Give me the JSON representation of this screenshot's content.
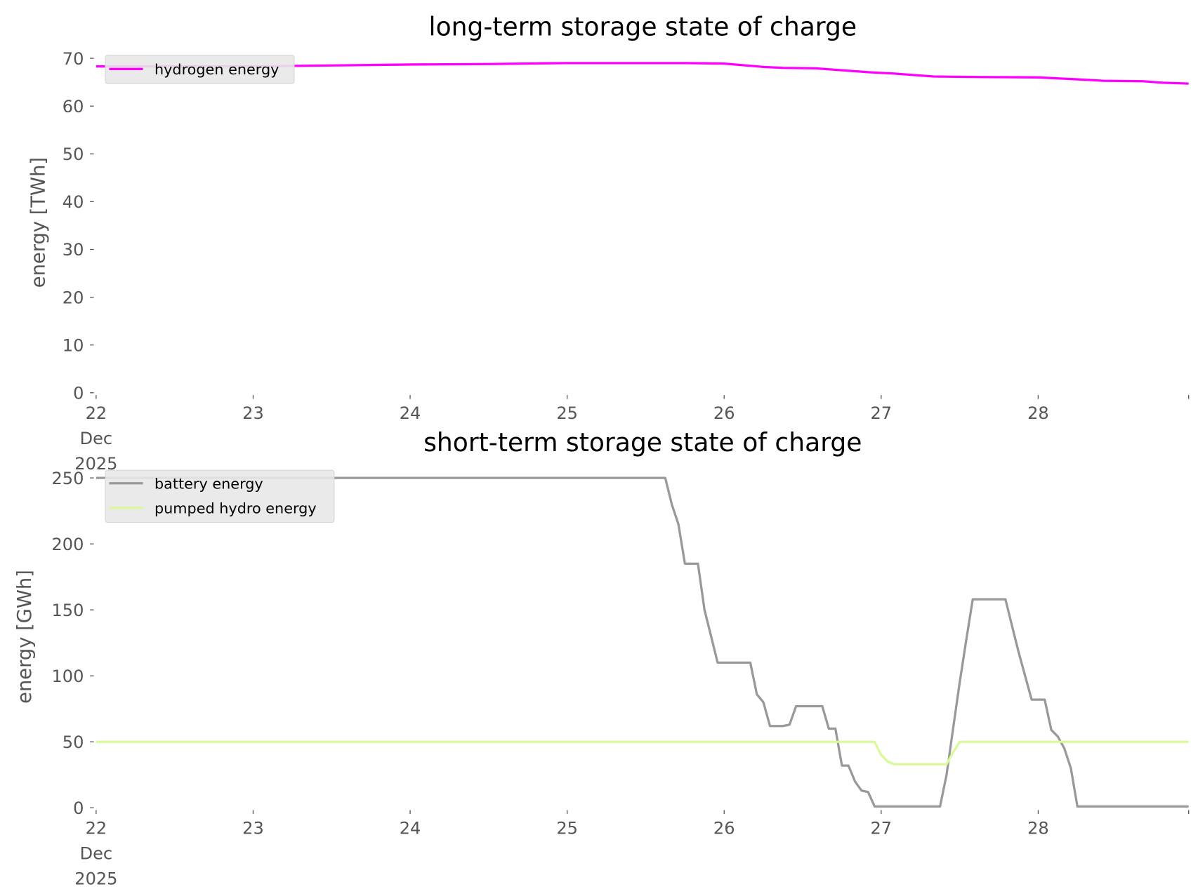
{
  "chart_data": [
    {
      "type": "line",
      "title": "long-term storage state of charge",
      "xlabel": "",
      "ylabel": "energy [TWh]",
      "x_unit": "hours since 22 Dec 2025 00:00",
      "xlim": [
        0,
        167
      ],
      "ylim": [
        0,
        70
      ],
      "yticks": [
        0,
        10,
        20,
        30,
        40,
        50,
        60,
        70
      ],
      "xticks": [
        {
          "hour": 0,
          "label": "22",
          "sub": [
            "Dec",
            "2025"
          ]
        },
        {
          "hour": 24,
          "label": "23"
        },
        {
          "hour": 48,
          "label": "24"
        },
        {
          "hour": 72,
          "label": "25"
        },
        {
          "hour": 96,
          "label": "26"
        },
        {
          "hour": 120,
          "label": "27"
        },
        {
          "hour": 144,
          "label": "28"
        },
        {
          "hour": 167,
          "label": ""
        }
      ],
      "grid": false,
      "legend": "top-left",
      "series": [
        {
          "name": "hydrogen energy",
          "color": "#ff00ff",
          "points": [
            [
              0,
              68.3
            ],
            [
              24,
              68.3
            ],
            [
              36,
              68.5
            ],
            [
              48,
              68.7
            ],
            [
              60,
              68.8
            ],
            [
              72,
              69.0
            ],
            [
              84,
              69.0
            ],
            [
              90,
              69.0
            ],
            [
              96,
              68.9
            ],
            [
              102,
              68.2
            ],
            [
              105,
              68.0
            ],
            [
              110,
              67.9
            ],
            [
              114,
              67.5
            ],
            [
              118,
              67.1
            ],
            [
              122,
              66.8
            ],
            [
              128,
              66.2
            ],
            [
              134,
              66.1
            ],
            [
              144,
              66.0
            ],
            [
              150,
              65.6
            ],
            [
              154,
              65.3
            ],
            [
              160,
              65.2
            ],
            [
              163,
              64.9
            ],
            [
              167,
              64.7
            ]
          ]
        }
      ]
    },
    {
      "type": "line",
      "title": "short-term storage state of charge",
      "xlabel": "",
      "ylabel": "energy [GWh]",
      "x_unit": "hours since 22 Dec 2025 00:00",
      "xlim": [
        0,
        167
      ],
      "ylim": [
        0,
        250
      ],
      "yticks": [
        0,
        50,
        100,
        150,
        200,
        250
      ],
      "xticks": [
        {
          "hour": 0,
          "label": "22",
          "sub": [
            "Dec",
            "2025"
          ]
        },
        {
          "hour": 24,
          "label": "23"
        },
        {
          "hour": 48,
          "label": "24"
        },
        {
          "hour": 72,
          "label": "25"
        },
        {
          "hour": 96,
          "label": "26"
        },
        {
          "hour": 120,
          "label": "27"
        },
        {
          "hour": 144,
          "label": "28"
        },
        {
          "hour": 167,
          "label": ""
        }
      ],
      "grid": false,
      "legend": "top-left",
      "series": [
        {
          "name": "battery energy",
          "color": "#999999",
          "points": [
            [
              0,
              250
            ],
            [
              87,
              250
            ],
            [
              88,
              230
            ],
            [
              89,
              215
            ],
            [
              90,
              185
            ],
            [
              92,
              185
            ],
            [
              93,
              150
            ],
            [
              94,
              130
            ],
            [
              95,
              110
            ],
            [
              100,
              110
            ],
            [
              101,
              86
            ],
            [
              102,
              80
            ],
            [
              103,
              62
            ],
            [
              105,
              62
            ],
            [
              106,
              63
            ],
            [
              107,
              77
            ],
            [
              111,
              77
            ],
            [
              112,
              60
            ],
            [
              113,
              60
            ],
            [
              114,
              32
            ],
            [
              115,
              32
            ],
            [
              116,
              20
            ],
            [
              117,
              13
            ],
            [
              118,
              12
            ],
            [
              119,
              1
            ],
            [
              129,
              1
            ],
            [
              130,
              25
            ],
            [
              131,
              60
            ],
            [
              132,
              95
            ],
            [
              133,
              127
            ],
            [
              134,
              158
            ],
            [
              139,
              158
            ],
            [
              140,
              138
            ],
            [
              141,
              118
            ],
            [
              142,
              100
            ],
            [
              143,
              82
            ],
            [
              145,
              82
            ],
            [
              146,
              59
            ],
            [
              147,
              54
            ],
            [
              148,
              45
            ],
            [
              149,
              30
            ],
            [
              150,
              1
            ],
            [
              167,
              1
            ]
          ]
        },
        {
          "name": "pumped hydro energy",
          "color": "#d9f99a",
          "points": [
            [
              0,
              50
            ],
            [
              119,
              50
            ],
            [
              120,
              40
            ],
            [
              121,
              35
            ],
            [
              122,
              33
            ],
            [
              130,
              33
            ],
            [
              131,
              42
            ],
            [
              132,
              50
            ],
            [
              167,
              50
            ]
          ]
        }
      ]
    }
  ]
}
